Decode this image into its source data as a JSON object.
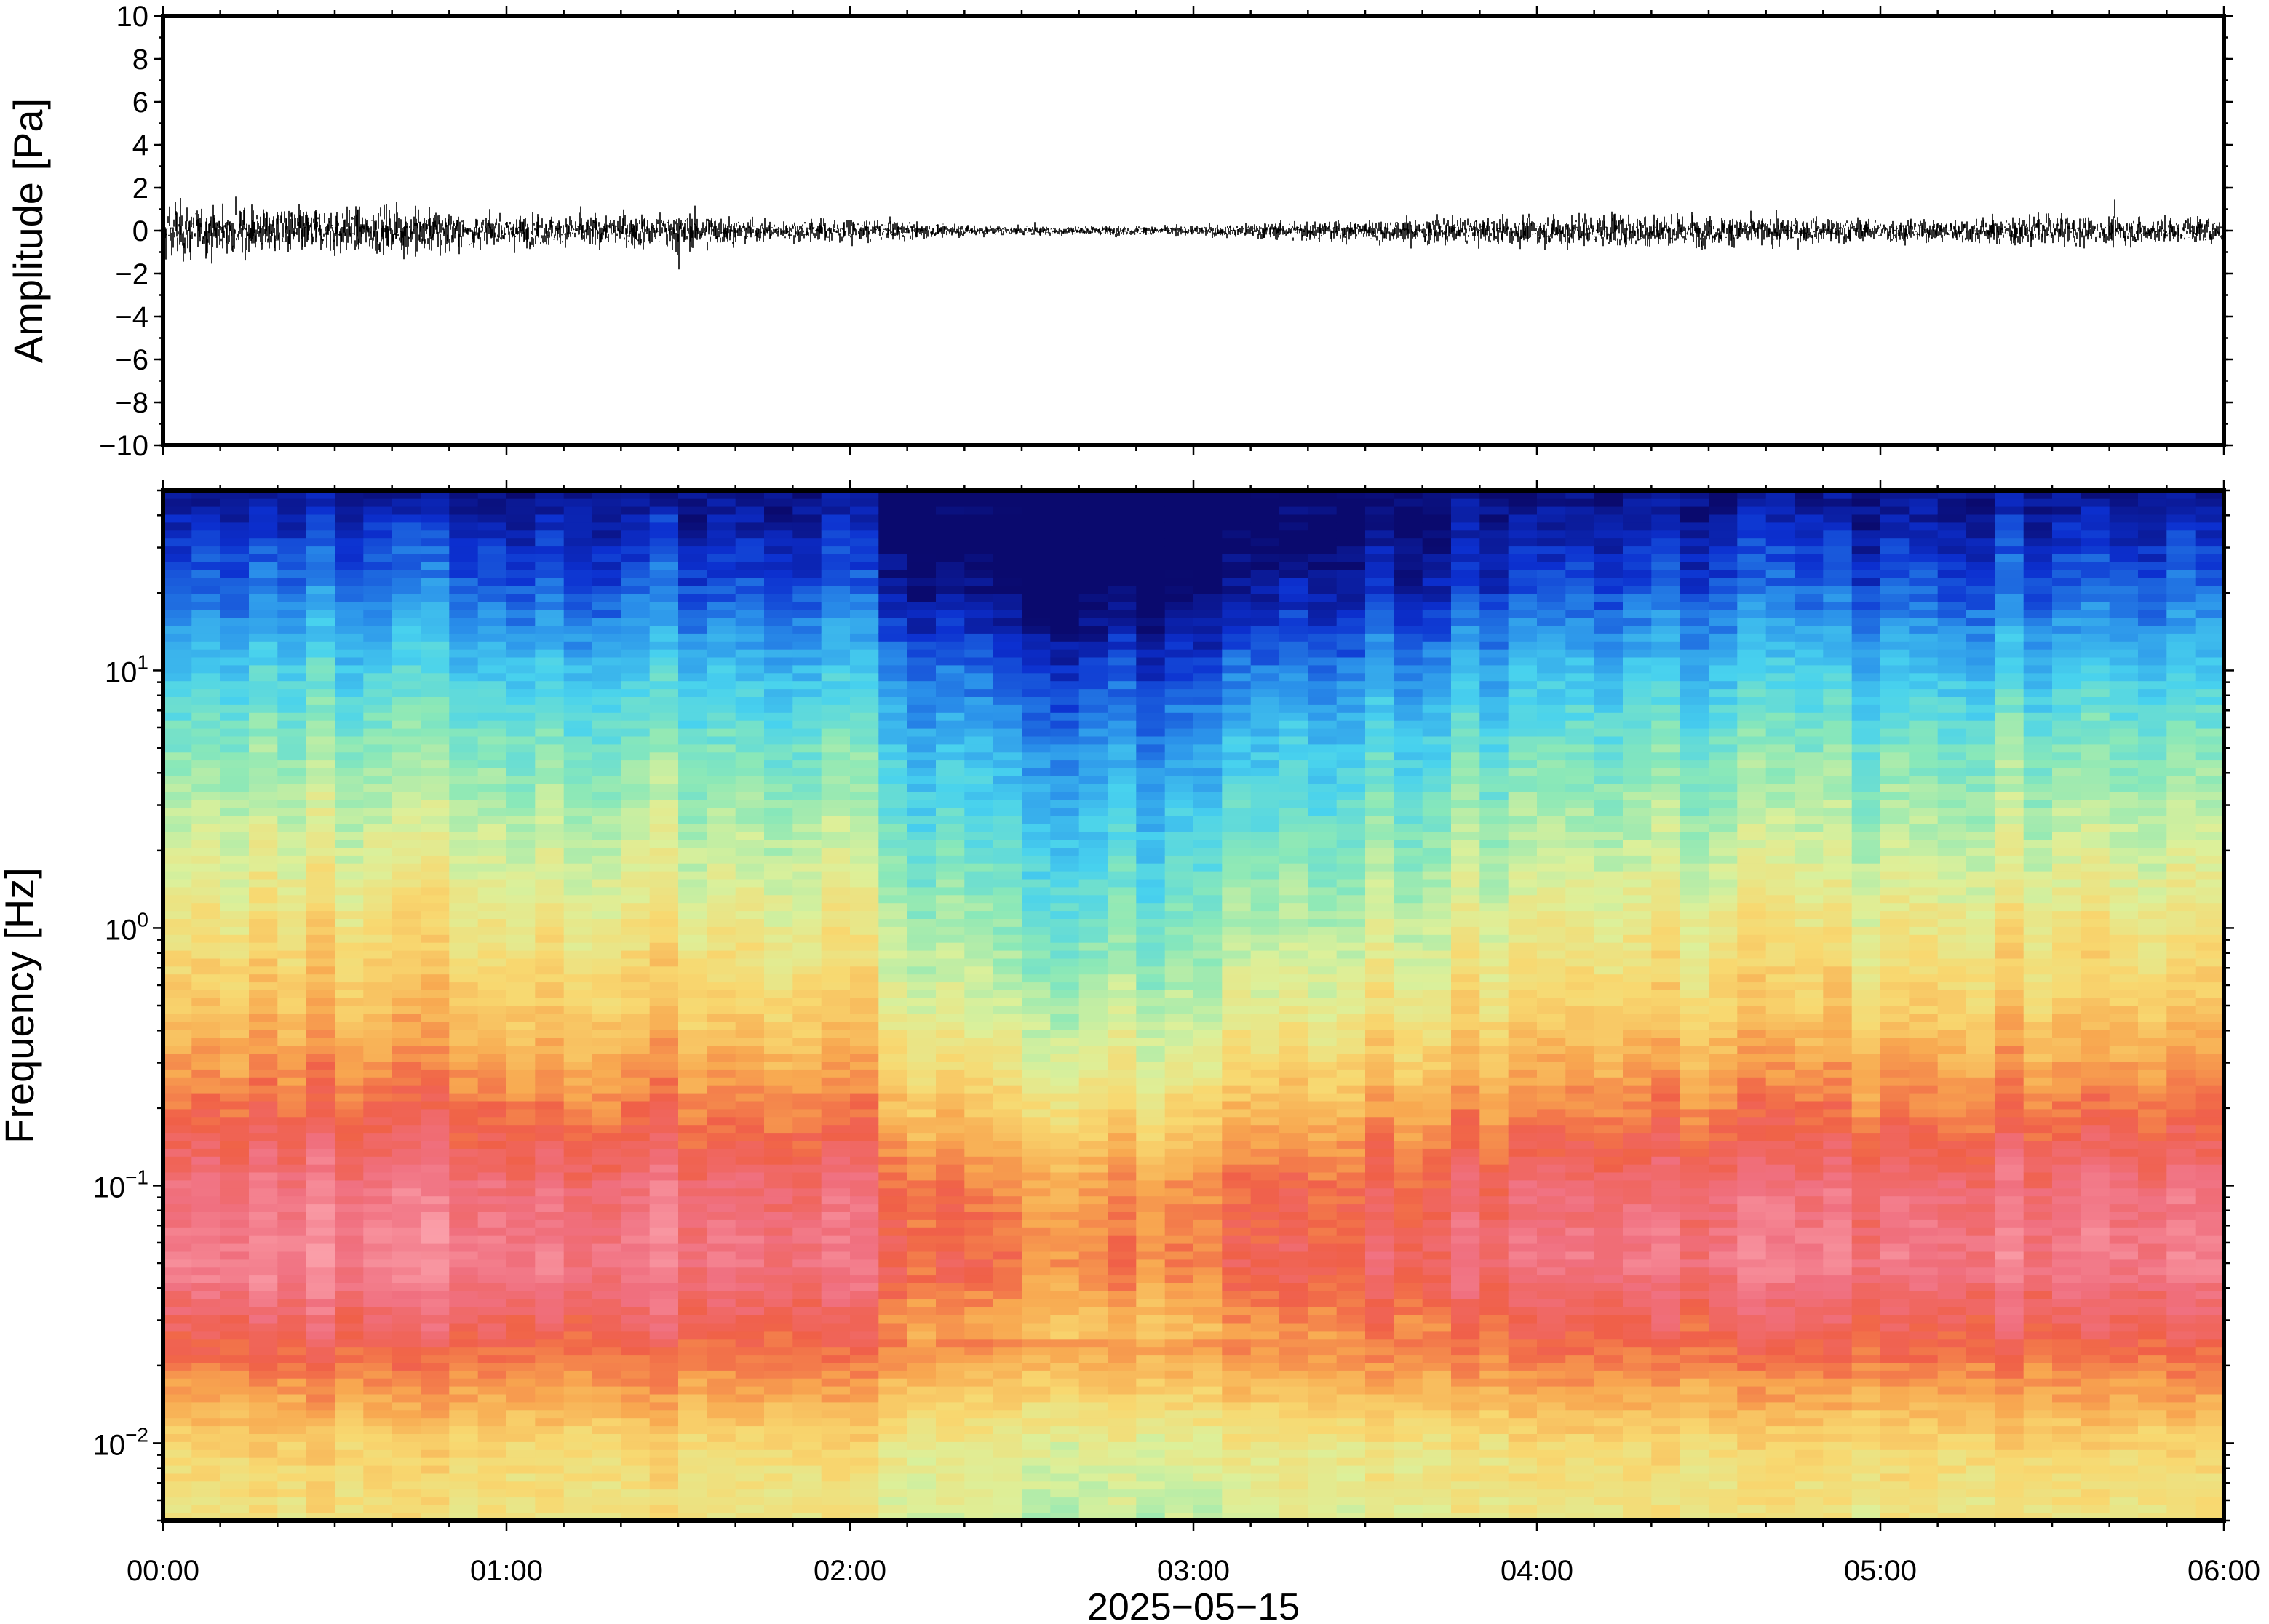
{
  "chart_data": [
    {
      "type": "line",
      "name": "waveform",
      "ylabel": "Amplitude [Pa]",
      "ylim": [
        -10,
        10
      ],
      "yticks": [
        -10,
        -8,
        -6,
        -4,
        -2,
        0,
        2,
        4,
        6,
        8,
        10
      ],
      "ytick_labels": [
        "−10",
        "−8",
        "−6",
        "−4",
        "−2",
        "0",
        "2",
        "4",
        "6",
        "8",
        "10"
      ],
      "xlim": [
        "00:00",
        "06:00"
      ],
      "line_color": "#000000",
      "series": [
        {
          "x_minutes": [
            0,
            15,
            30,
            45,
            60,
            75,
            90,
            105,
            120,
            135,
            150,
            165,
            180,
            195,
            210,
            225,
            240,
            255,
            270,
            285,
            300,
            315,
            330,
            345,
            360
          ],
          "envelope": [
            1.8,
            1.6,
            1.5,
            1.6,
            1.1,
            1.0,
            1.3,
            0.7,
            0.8,
            0.5,
            0.3,
            0.35,
            0.35,
            0.6,
            0.8,
            0.9,
            1.0,
            1.2,
            1.1,
            0.9,
            0.8,
            0.8,
            1.1,
            0.9,
            1.0
          ],
          "peak_max": 2.2,
          "peak_min": -2.4
        }
      ]
    },
    {
      "type": "heatmap",
      "name": "spectrogram",
      "ylabel": "Frequency [Hz]",
      "xlabel": "2025−05−15",
      "yscale": "log",
      "ylim": [
        0.005,
        50
      ],
      "yticks": [
        0.01,
        0.1,
        1,
        10
      ],
      "ytick_labels": [
        {
          "base": "10",
          "exp": "−2"
        },
        {
          "base": "10",
          "exp": "−1"
        },
        {
          "base": "10",
          "exp": "0"
        },
        {
          "base": "10",
          "exp": "1"
        }
      ],
      "xticks": [
        "00:00",
        "01:00",
        "02:00",
        "03:00",
        "04:00",
        "05:00",
        "06:00"
      ],
      "colormap": [
        "#0a0a6e",
        "#0c30d0",
        "#2a90ea",
        "#48d2ee",
        "#8ae8b8",
        "#dcf09a",
        "#f8d870",
        "#f8a850",
        "#f06048",
        "#f07080",
        "#fa9ea8"
      ],
      "power_profile_log10f": [
        -2.3,
        -2.0,
        -1.6,
        -1.3,
        -1.0,
        -0.6,
        -0.3,
        0.0,
        0.3,
        0.7,
        1.0,
        1.3,
        1.7
      ],
      "power_profile_level": [
        0.55,
        0.6,
        0.8,
        0.92,
        0.88,
        0.72,
        0.62,
        0.55,
        0.48,
        0.38,
        0.28,
        0.15,
        0.02
      ],
      "time_offsets_minutes": [
        0,
        30,
        60,
        90,
        120,
        135,
        150,
        165,
        180,
        195,
        210,
        240,
        270,
        300,
        330,
        360
      ],
      "time_offsets_level": [
        0.04,
        0.04,
        0.02,
        0.01,
        0.0,
        -0.12,
        -0.18,
        -0.17,
        -0.16,
        -0.1,
        -0.06,
        -0.02,
        0.0,
        0.0,
        0.02,
        0.03
      ]
    }
  ]
}
